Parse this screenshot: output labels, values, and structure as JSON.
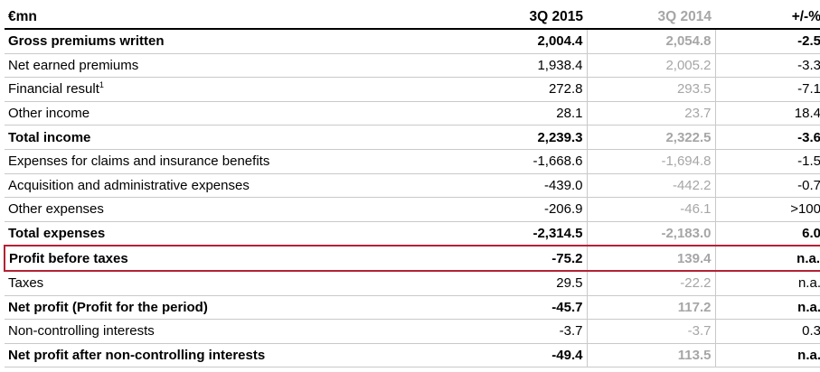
{
  "header": {
    "unit": "€mn",
    "col_current": "3Q 2015",
    "col_prior": "3Q 2014",
    "col_change": "+/-%"
  },
  "rows": [
    {
      "label": "Gross premiums written",
      "note": "",
      "current": "2,004.4",
      "prior": "2,054.8",
      "change": "-2.5",
      "bold": true,
      "highlight": false
    },
    {
      "label": "Net earned premiums",
      "note": "",
      "current": "1,938.4",
      "prior": "2,005.2",
      "change": "-3.3",
      "bold": false,
      "highlight": false
    },
    {
      "label": "Financial result",
      "note": "1",
      "current": "272.8",
      "prior": "293.5",
      "change": "-7.1",
      "bold": false,
      "highlight": false
    },
    {
      "label": "Other income",
      "note": "",
      "current": "28.1",
      "prior": "23.7",
      "change": "18.4",
      "bold": false,
      "highlight": false
    },
    {
      "label": "Total income",
      "note": "",
      "current": "2,239.3",
      "prior": "2,322.5",
      "change": "-3.6",
      "bold": true,
      "highlight": false
    },
    {
      "label": "Expenses for claims and insurance benefits",
      "note": "",
      "current": "-1,668.6",
      "prior": "-1,694.8",
      "change": "-1.5",
      "bold": false,
      "highlight": false
    },
    {
      "label": "Acquisition and administrative expenses",
      "note": "",
      "current": "-439.0",
      "prior": "-442.2",
      "change": "-0.7",
      "bold": false,
      "highlight": false
    },
    {
      "label": "Other expenses",
      "note": "",
      "current": "-206.9",
      "prior": "-46.1",
      "change": ">100",
      "bold": false,
      "highlight": false
    },
    {
      "label": "Total expenses",
      "note": "",
      "current": "-2,314.5",
      "prior": "-2,183.0",
      "change": "6.0",
      "bold": true,
      "highlight": false
    },
    {
      "label": "Profit before taxes",
      "note": "",
      "current": "-75.2",
      "prior": "139.4",
      "change": "n.a.",
      "bold": true,
      "highlight": true
    },
    {
      "label": "Taxes",
      "note": "",
      "current": "29.5",
      "prior": "-22.2",
      "change": "n.a.",
      "bold": false,
      "highlight": false
    },
    {
      "label": "Net profit (Profit for the period)",
      "note": "",
      "current": "-45.7",
      "prior": "117.2",
      "change": "n.a.",
      "bold": true,
      "highlight": false
    },
    {
      "label": "Non-controlling interests",
      "note": "",
      "current": "-3.7",
      "prior": "-3.7",
      "change": "0.3",
      "bold": false,
      "highlight": false
    },
    {
      "label": "Net profit after non-controlling interests",
      "note": "",
      "current": "-49.4",
      "prior": "113.5",
      "change": "n.a.",
      "bold": true,
      "highlight": false
    }
  ],
  "colors": {
    "highlight_border": "#b22234",
    "prior_text": "#a6a6a6",
    "row_divider": "#c9c9c9"
  }
}
